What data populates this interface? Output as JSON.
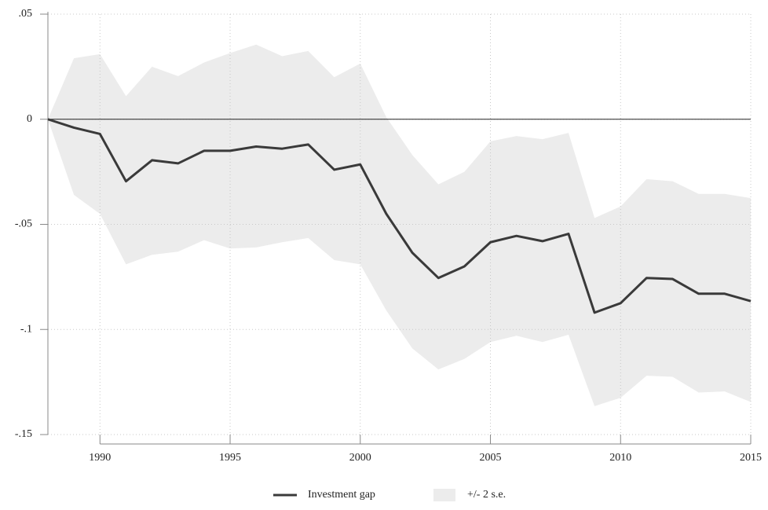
{
  "chart_data": {
    "type": "line",
    "x": [
      1988,
      1989,
      1990,
      1991,
      1992,
      1993,
      1994,
      1995,
      1996,
      1997,
      1998,
      1999,
      2000,
      2001,
      2002,
      2003,
      2004,
      2005,
      2006,
      2007,
      2008,
      2009,
      2010,
      2011,
      2012,
      2013,
      2014,
      2015
    ],
    "series": [
      {
        "name": "Investment gap",
        "color": "#3a3a3a",
        "values": [
          0,
          -0.004,
          -0.007,
          -0.0295,
          -0.0195,
          -0.021,
          -0.015,
          -0.015,
          -0.013,
          -0.014,
          -0.012,
          -0.024,
          -0.0215,
          -0.045,
          -0.0635,
          -0.0755,
          -0.07,
          -0.0585,
          -0.0555,
          -0.058,
          -0.0545,
          -0.092,
          -0.0875,
          -0.0755,
          -0.076,
          -0.083,
          -0.083,
          -0.0865
        ]
      }
    ],
    "band": {
      "name": "+/- 2 s.e.",
      "color": "#ececec",
      "upper": [
        0,
        0.029,
        0.031,
        0.011,
        0.025,
        0.0205,
        0.027,
        0.0315,
        0.0355,
        0.03,
        0.0325,
        0.02,
        0.0265,
        0.001,
        -0.017,
        -0.031,
        -0.025,
        -0.0105,
        -0.008,
        -0.0095,
        -0.0065,
        -0.047,
        -0.0415,
        -0.0285,
        -0.0295,
        -0.0355,
        -0.0355,
        -0.0375
      ],
      "lower": [
        0,
        -0.036,
        -0.045,
        -0.069,
        -0.0645,
        -0.063,
        -0.0575,
        -0.0615,
        -0.061,
        -0.0585,
        -0.0565,
        -0.067,
        -0.069,
        -0.091,
        -0.109,
        -0.119,
        -0.114,
        -0.106,
        -0.103,
        -0.106,
        -0.1025,
        -0.1365,
        -0.1325,
        -0.122,
        -0.1225,
        -0.13,
        -0.1295,
        -0.1345
      ]
    },
    "xlim": [
      1988,
      2015
    ],
    "ylim": [
      -0.15,
      0.05
    ],
    "xticks": [
      1990,
      1995,
      2000,
      2005,
      2010,
      2015
    ],
    "yticks": [
      {
        "value": 0.05,
        "label": ".05"
      },
      0,
      {
        "value": -0.05,
        "label": "-.05"
      },
      {
        "value": -0.1,
        "label": "-.1"
      },
      {
        "value": -0.15,
        "label": "-.15"
      }
    ],
    "reference_line": 0,
    "grid": true
  }
}
